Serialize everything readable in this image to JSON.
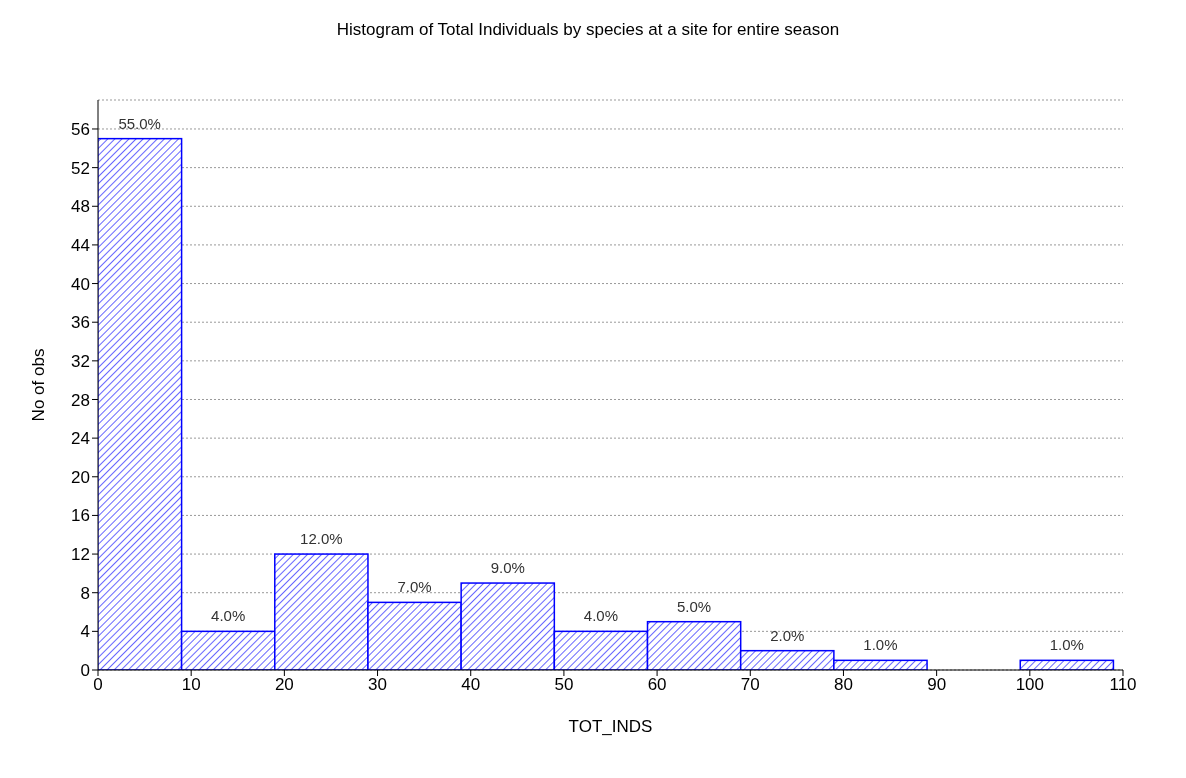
{
  "chart_data": {
    "type": "histogram",
    "title": "Histogram of Total Individuals by species at a site for entire season",
    "xlabel": "TOT_INDS",
    "ylabel": "No of obs",
    "bins": [
      0,
      9,
      19,
      29,
      39,
      49,
      59,
      69,
      79,
      89,
      99,
      109
    ],
    "values": [
      55,
      4,
      12,
      7,
      9,
      4,
      5,
      2,
      1,
      0,
      1
    ],
    "value_labels": [
      "55.0%",
      "4.0%",
      "12.0%",
      "7.0%",
      "9.0%",
      "4.0%",
      "5.0%",
      "2.0%",
      "1.0%",
      null,
      "1.0%"
    ],
    "color": "#0000ff",
    "xlim": [
      0,
      110
    ],
    "xticks": [
      0,
      10,
      20,
      30,
      40,
      50,
      60,
      70,
      80,
      90,
      100,
      110
    ],
    "ylim": [
      0,
      59
    ],
    "yticks": [
      0,
      4,
      8,
      12,
      16,
      20,
      24,
      28,
      32,
      36,
      40,
      44,
      48,
      52,
      56
    ],
    "grid": "y"
  }
}
